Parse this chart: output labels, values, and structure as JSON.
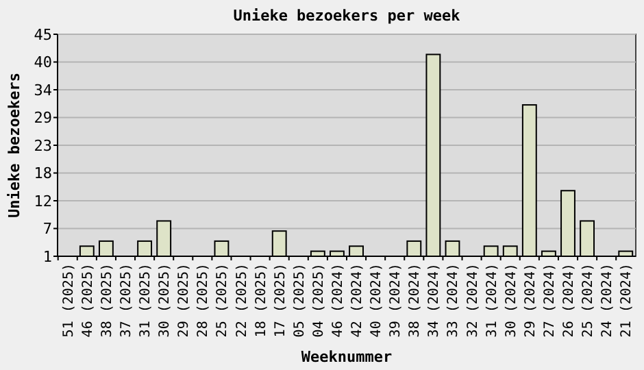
{
  "chart_data": {
    "type": "bar",
    "title": "Unieke bezoekers per week",
    "xlabel": "Weeknummer",
    "ylabel": "Unieke bezoekers",
    "categories": [
      "51 (2025)",
      "46 (2025)",
      "38 (2025)",
      "37 (2025)",
      "31 (2025)",
      "30 (2025)",
      "29 (2025)",
      "28 (2025)",
      "25 (2025)",
      "22 (2025)",
      "18 (2025)",
      "17 (2025)",
      "05 (2025)",
      "04 (2025)",
      "46 (2024)",
      "42 (2024)",
      "40 (2024)",
      "39 (2024)",
      "38 (2024)",
      "34 (2024)",
      "33 (2024)",
      "32 (2024)",
      "31 (2024)",
      "30 (2024)",
      "29 (2024)",
      "27 (2024)",
      "26 (2024)",
      "25 (2024)",
      "24 (2024)",
      "21 (2024)"
    ],
    "values": [
      1,
      3,
      4,
      1,
      4,
      8,
      1,
      1,
      4,
      1,
      1,
      6,
      1,
      2,
      2,
      3,
      1,
      1,
      4,
      41,
      4,
      1,
      3,
      3,
      31,
      2,
      14,
      8,
      1,
      2
    ],
    "color": "#dee3c8",
    "ylim": [
      1,
      45
    ],
    "yticks": [
      1,
      {
        "value": 6.5,
        "label": "7"
      },
      12,
      {
        "value": 17.5,
        "label": "18"
      },
      23,
      {
        "value": 28.5,
        "label": "29"
      },
      34,
      {
        "value": 39.5,
        "label": "40"
      },
      45
    ],
    "grid": "y"
  }
}
